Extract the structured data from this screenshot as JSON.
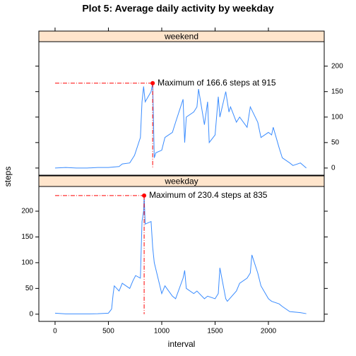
{
  "chart_data": {
    "type": "line",
    "title": "Plot 5: Average daily activity by weekday",
    "xlabel": "interval",
    "ylabel": "steps",
    "xlim": [
      -152,
      2523
    ],
    "xticks": [
      0,
      500,
      1000,
      1500,
      2000
    ],
    "ylim": [
      -14,
      248
    ],
    "yticks": [
      0,
      50,
      100,
      150,
      200
    ],
    "panels": [
      {
        "name": "weekend",
        "color": "#3a8cff",
        "annotation": "Maximum of  166.6 steps at 915",
        "x": [
          0,
          100,
          200,
          300,
          400,
          500,
          600,
          630,
          700,
          730,
          745,
          800,
          815,
          830,
          845,
          900,
          915,
          930,
          945,
          1000,
          1030,
          1100,
          1130,
          1200,
          1215,
          1230,
          1300,
          1330,
          1345,
          1400,
          1430,
          1445,
          1500,
          1530,
          1545,
          1600,
          1630,
          1645,
          1700,
          1730,
          1800,
          1830,
          1900,
          1930,
          2000,
          2030,
          2045,
          2100,
          2130,
          2200,
          2230,
          2300,
          2355
        ],
        "values": [
          0,
          1,
          0,
          0,
          1,
          1,
          3,
          8,
          10,
          20,
          25,
          60,
          130,
          160,
          130,
          150,
          166.6,
          20,
          30,
          35,
          60,
          70,
          90,
          135,
          50,
          100,
          110,
          120,
          155,
          85,
          130,
          50,
          65,
          140,
          100,
          150,
          110,
          120,
          90,
          100,
          80,
          120,
          90,
          60,
          70,
          65,
          80,
          40,
          20,
          10,
          5,
          10,
          0
        ]
      },
      {
        "name": "weekday",
        "color": "#3a8cff",
        "annotation": "Maximum of  230.4 steps at 835",
        "x": [
          0,
          100,
          200,
          300,
          400,
          500,
          530,
          545,
          555,
          600,
          630,
          700,
          730,
          755,
          800,
          815,
          830,
          835,
          845,
          900,
          915,
          930,
          1000,
          1030,
          1100,
          1130,
          1200,
          1215,
          1230,
          1300,
          1330,
          1400,
          1430,
          1500,
          1530,
          1545,
          1600,
          1615,
          1700,
          1730,
          1800,
          1830,
          1845,
          1900,
          1930,
          2000,
          2030,
          2100,
          2130,
          2200,
          2300,
          2355
        ],
        "values": [
          2,
          0.5,
          0.5,
          0.5,
          1,
          2,
          10,
          40,
          55,
          45,
          60,
          50,
          65,
          75,
          70,
          180,
          200,
          230.4,
          175,
          180,
          130,
          100,
          40,
          55,
          35,
          30,
          70,
          85,
          50,
          40,
          45,
          30,
          35,
          30,
          40,
          90,
          30,
          25,
          45,
          60,
          70,
          80,
          115,
          80,
          55,
          30,
          25,
          20,
          15,
          5,
          3,
          1
        ]
      }
    ]
  }
}
